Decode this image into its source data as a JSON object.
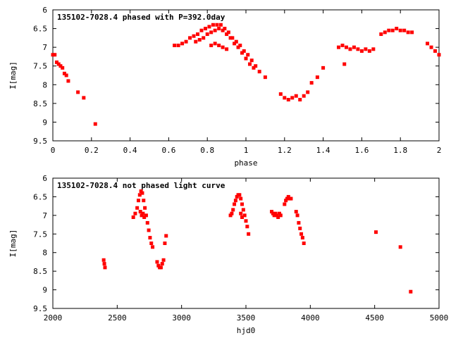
{
  "chart_data": [
    {
      "type": "scatter",
      "title": "135102-7028.4 phased with P=392.0day",
      "xlabel": "phase",
      "ylabel": "I[mag]",
      "xlim": [
        0,
        2
      ],
      "ylim": [
        9.5,
        6
      ],
      "y_inverted": true,
      "xticks": [
        "0",
        "0.2",
        "0.4",
        "0.6",
        "0.8",
        "1",
        "1.2",
        "1.4",
        "1.6",
        "1.8",
        "2"
      ],
      "yticks": [
        "6",
        "6.5",
        "7",
        "7.5",
        "8",
        "8.5",
        "9",
        "9.5"
      ],
      "grid": false,
      "marker_color": "#ff0000",
      "series": [
        {
          "x": [
            0.0,
            0.01,
            0.02,
            0.03,
            0.04,
            0.05,
            0.06,
            0.07,
            0.08,
            0.13,
            0.16,
            0.22,
            0.63,
            0.65,
            0.67,
            0.69,
            0.71,
            0.73,
            0.75,
            0.77,
            0.79,
            0.81,
            0.83,
            0.85,
            0.87,
            0.89,
            0.91,
            0.93,
            0.95,
            0.97,
            0.99,
            1.01,
            1.03,
            1.05,
            1.07,
            1.1,
            0.74,
            0.76,
            0.78,
            0.8,
            0.82,
            0.84,
            0.86,
            0.88,
            0.9,
            0.92,
            0.94,
            0.96,
            0.98,
            1.0,
            1.02,
            1.04,
            0.82,
            0.84,
            0.86,
            0.88,
            0.9,
            1.18,
            1.2,
            1.22,
            1.24,
            1.26,
            1.28,
            1.3,
            1.32,
            1.34,
            1.37,
            1.4,
            1.48,
            1.5,
            1.52,
            1.54,
            1.56,
            1.58,
            1.6,
            1.62,
            1.64,
            1.66,
            1.51,
            1.7,
            1.72,
            1.74,
            1.76,
            1.78,
            1.8,
            1.82,
            1.84,
            1.86,
            1.94,
            1.96,
            1.98,
            2.0
          ],
          "y": [
            7.2,
            7.2,
            7.4,
            7.45,
            7.5,
            7.55,
            7.7,
            7.75,
            7.9,
            8.2,
            8.35,
            9.05,
            6.95,
            6.95,
            6.9,
            6.85,
            6.75,
            6.7,
            6.65,
            6.55,
            6.5,
            6.45,
            6.4,
            6.4,
            6.4,
            6.5,
            6.6,
            6.75,
            6.85,
            6.95,
            7.1,
            7.2,
            7.35,
            7.5,
            7.65,
            7.8,
            6.85,
            6.8,
            6.75,
            6.65,
            6.6,
            6.55,
            6.5,
            6.55,
            6.65,
            6.75,
            6.9,
            7.0,
            7.15,
            7.3,
            7.45,
            7.55,
            6.95,
            6.9,
            6.95,
            7.0,
            7.05,
            8.25,
            8.35,
            8.4,
            8.35,
            8.3,
            8.4,
            8.3,
            8.2,
            7.95,
            7.8,
            7.55,
            7.0,
            6.95,
            7.0,
            7.05,
            7.0,
            7.05,
            7.1,
            7.05,
            7.1,
            7.05,
            7.45,
            6.65,
            6.6,
            6.55,
            6.55,
            6.5,
            6.55,
            6.55,
            6.6,
            6.6,
            6.9,
            7.0,
            7.1,
            7.2
          ]
        }
      ]
    },
    {
      "type": "scatter",
      "title": "135102-7028.4 not phased light curve",
      "xlabel": "hjd0",
      "ylabel": "I[mag]",
      "xlim": [
        2000,
        5000
      ],
      "ylim": [
        9.5,
        6
      ],
      "y_inverted": true,
      "xticks": [
        "2000",
        "2500",
        "3000",
        "3500",
        "4000",
        "4500",
        "5000"
      ],
      "yticks": [
        "6",
        "6.5",
        "7",
        "7.5",
        "8",
        "8.5",
        "9",
        "9.5"
      ],
      "grid": false,
      "marker_color": "#ff0000",
      "series": [
        {
          "x": [
            2395,
            2400,
            2405,
            2625,
            2640,
            2655,
            2665,
            2675,
            2685,
            2695,
            2705,
            2715,
            2725,
            2735,
            2745,
            2755,
            2765,
            2775,
            2680,
            2690,
            2700,
            2710,
            2810,
            2820,
            2830,
            2840,
            2850,
            2860,
            2870,
            2880,
            3380,
            3390,
            3400,
            3410,
            3420,
            3430,
            3440,
            3450,
            3460,
            3470,
            3480,
            3490,
            3500,
            3510,
            3520,
            3460,
            3470,
            3700,
            3710,
            3720,
            3730,
            3740,
            3750,
            3760,
            3770,
            3800,
            3810,
            3820,
            3830,
            3840,
            3850,
            3890,
            3900,
            3910,
            3920,
            3930,
            3940,
            3950,
            4510,
            4700,
            4780
          ],
          "y": [
            8.2,
            8.3,
            8.4,
            7.05,
            6.95,
            6.8,
            6.6,
            6.45,
            6.35,
            6.4,
            6.6,
            6.8,
            7.0,
            7.2,
            7.4,
            7.6,
            7.75,
            7.85,
            6.9,
            7.0,
            6.95,
            7.05,
            8.25,
            8.35,
            8.4,
            8.4,
            8.3,
            8.2,
            7.75,
            7.55,
            7.0,
            6.95,
            6.85,
            6.7,
            6.6,
            6.5,
            6.45,
            6.45,
            6.55,
            6.7,
            6.85,
            7.0,
            7.15,
            7.3,
            7.5,
            6.95,
            7.05,
            6.9,
            6.95,
            7.0,
            6.95,
            7.0,
            7.05,
            6.95,
            7.0,
            6.7,
            6.6,
            6.55,
            6.5,
            6.55,
            6.55,
            6.9,
            7.0,
            7.2,
            7.35,
            7.5,
            7.6,
            7.75,
            7.45,
            7.85,
            9.05
          ]
        }
      ]
    }
  ]
}
